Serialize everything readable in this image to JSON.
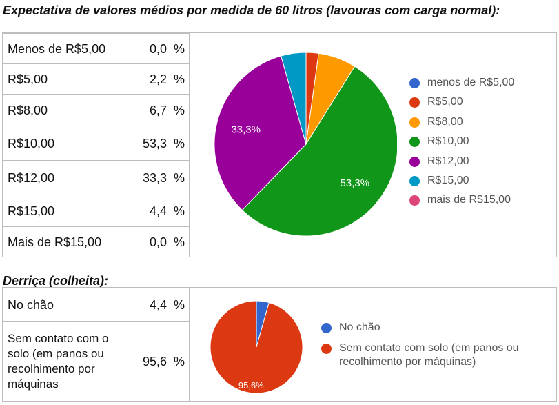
{
  "section1": {
    "title": "Expectativa de valores médios por medida de 60 litros (lavouras com carga normal):",
    "rows": [
      {
        "label": "Menos de R$5,00",
        "percent": "0,0  %"
      },
      {
        "label": "R$5,00",
        "percent": "2,2  %"
      },
      {
        "label": "R$8,00",
        "percent": "6,7  %"
      },
      {
        "label": "R$10,00",
        "percent": "53,3  %"
      },
      {
        "label": "R$12,00",
        "percent": "33,3  %"
      },
      {
        "label": "R$15,00",
        "percent": "4,4  %"
      },
      {
        "label": "Mais de R$15,00",
        "percent": "0,0  %"
      }
    ]
  },
  "section2": {
    "title": "Derriça (colheita):",
    "rows": [
      {
        "label": "No chão",
        "percent": "4,4  %"
      },
      {
        "label": "Sem contato com o solo (em panos ou recolhimento por máquinas",
        "percent": "95,6  %"
      }
    ]
  },
  "chart_data": [
    {
      "type": "pie",
      "categories": [
        "menos de R$5,00",
        "R$5,00",
        "R$8,00",
        "R$10,00",
        "R$12,00",
        "R$15,00",
        "mais de R$15,00"
      ],
      "values": [
        0.0,
        2.2,
        6.7,
        53.3,
        33.3,
        4.4,
        0.0
      ],
      "colors": [
        "#3366cc",
        "#dc3912",
        "#ff9900",
        "#109618",
        "#990099",
        "#0099c6",
        "#dd4477"
      ],
      "slice_labels": [
        "",
        "",
        "",
        "53,3%",
        "33,3%",
        "",
        ""
      ],
      "legend_position": "right"
    },
    {
      "type": "pie",
      "categories": [
        "No chão",
        "Sem contato com solo (em panos ou recolhimento por máquinas)"
      ],
      "values": [
        4.4,
        95.6
      ],
      "colors": [
        "#3366cc",
        "#dc3912"
      ],
      "slice_labels": [
        "",
        "95,6%"
      ],
      "legend_position": "right"
    }
  ]
}
